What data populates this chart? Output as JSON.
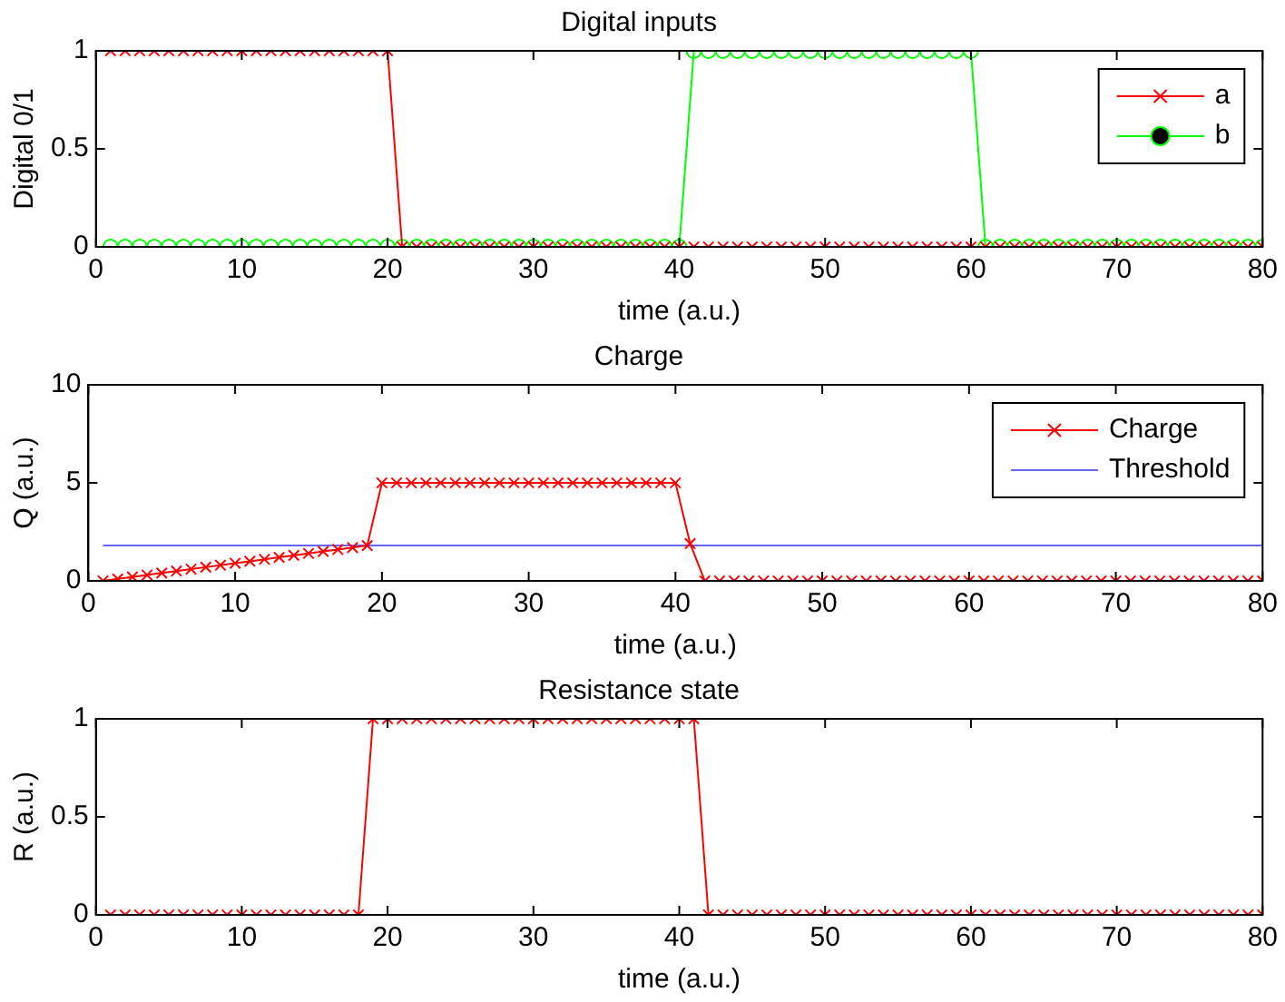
{
  "chart_data": [
    {
      "type": "line",
      "title": "Digital inputs",
      "xlabel": "time (a.u.)",
      "ylabel": "Digital 0/1",
      "marker": "cross",
      "legend": "top right",
      "xlim": [
        0,
        80
      ],
      "xticks": [
        0,
        10,
        20,
        30,
        40,
        50,
        60,
        70,
        80
      ],
      "ylim": [
        0,
        1
      ],
      "yticks": [
        0,
        0.5,
        1
      ],
      "x": [
        1,
        2,
        3,
        4,
        5,
        6,
        7,
        8,
        9,
        10,
        11,
        12,
        13,
        14,
        15,
        16,
        17,
        18,
        19,
        20,
        21,
        22,
        23,
        24,
        25,
        26,
        27,
        28,
        29,
        30,
        31,
        32,
        33,
        34,
        35,
        36,
        37,
        38,
        39,
        40,
        41,
        42,
        43,
        44,
        45,
        46,
        47,
        48,
        49,
        50,
        51,
        52,
        53,
        54,
        55,
        56,
        57,
        58,
        59,
        60,
        61,
        62,
        63,
        64,
        65,
        66,
        67,
        68,
        69,
        70,
        71,
        72,
        73,
        74,
        75,
        76,
        77,
        78,
        79,
        80
      ],
      "series": [
        {
          "name": "a",
          "color": "#ff0000",
          "values": [
            1,
            1,
            1,
            1,
            1,
            1,
            1,
            1,
            1,
            1,
            1,
            1,
            1,
            1,
            1,
            1,
            1,
            1,
            1,
            1,
            0,
            0,
            0,
            0,
            0,
            0,
            0,
            0,
            0,
            0,
            0,
            0,
            0,
            0,
            0,
            0,
            0,
            0,
            0,
            0,
            0,
            0,
            0,
            0,
            0,
            0,
            0,
            0,
            0,
            0,
            0,
            0,
            0,
            0,
            0,
            0,
            0,
            0,
            0,
            0,
            0,
            0,
            0,
            0,
            0,
            0,
            0,
            0,
            0,
            0,
            0,
            0,
            0,
            0,
            0,
            0,
            0,
            0,
            0,
            0
          ]
        },
        {
          "name": "b",
          "color": "#00ff00",
          "marker": "circle",
          "values": [
            0,
            0,
            0,
            0,
            0,
            0,
            0,
            0,
            0,
            0,
            0,
            0,
            0,
            0,
            0,
            0,
            0,
            0,
            0,
            0,
            0,
            0,
            0,
            0,
            0,
            0,
            0,
            0,
            0,
            0,
            0,
            0,
            0,
            0,
            0,
            0,
            0,
            0,
            0,
            0,
            1,
            1,
            1,
            1,
            1,
            1,
            1,
            1,
            1,
            1,
            1,
            1,
            1,
            1,
            1,
            1,
            1,
            1,
            1,
            1,
            0,
            0,
            0,
            0,
            0,
            0,
            0,
            0,
            0,
            0,
            0,
            0,
            0,
            0,
            0,
            0,
            0,
            0,
            0,
            0
          ]
        }
      ]
    },
    {
      "type": "line",
      "title": "Charge",
      "xlabel": "time (a.u.)",
      "ylabel": "Q (a.u.)",
      "marker": "cross",
      "legend": "top right",
      "xlim": [
        0,
        80
      ],
      "xticks": [
        0,
        10,
        20,
        30,
        40,
        50,
        60,
        70,
        80
      ],
      "ylim": [
        0,
        10
      ],
      "yticks": [
        0,
        5,
        10
      ],
      "x": [
        1,
        2,
        3,
        4,
        5,
        6,
        7,
        8,
        9,
        10,
        11,
        12,
        13,
        14,
        15,
        16,
        17,
        18,
        19,
        20,
        21,
        22,
        23,
        24,
        25,
        26,
        27,
        28,
        29,
        30,
        31,
        32,
        33,
        34,
        35,
        36,
        37,
        38,
        39,
        40,
        41,
        42,
        43,
        44,
        45,
        46,
        47,
        48,
        49,
        50,
        51,
        52,
        53,
        54,
        55,
        56,
        57,
        58,
        59,
        60,
        61,
        62,
        63,
        64,
        65,
        66,
        67,
        68,
        69,
        70,
        71,
        72,
        73,
        74,
        75,
        76,
        77,
        78,
        79,
        80
      ],
      "series": [
        {
          "name": "Charge",
          "color": "#ff0000",
          "values": [
            0,
            0.1,
            0.2,
            0.3,
            0.4,
            0.5,
            0.6,
            0.7,
            0.8,
            0.9,
            1,
            1.1,
            1.2,
            1.3,
            1.4,
            1.5,
            1.6,
            1.7,
            1.8,
            5,
            5,
            5,
            5,
            5,
            5,
            5,
            5,
            5,
            5,
            5,
            5,
            5,
            5,
            5,
            5,
            5,
            5,
            5,
            5,
            5,
            1.9,
            0,
            0,
            0,
            0,
            0,
            0,
            0,
            0,
            0,
            0,
            0,
            0,
            0,
            0,
            0,
            0,
            0,
            0,
            0,
            0,
            0,
            0,
            0,
            0,
            0,
            0,
            0,
            0,
            0,
            0,
            0,
            0,
            0,
            0,
            0,
            0,
            0,
            0,
            0
          ]
        },
        {
          "name": "Threshold",
          "color": "#6666ff",
          "marker": "none",
          "x": [
            1,
            80
          ],
          "values": [
            1.8,
            1.8
          ]
        }
      ]
    },
    {
      "type": "line",
      "title": "Resistance state",
      "xlabel": "time (a.u.)",
      "ylabel": "R (a.u.)",
      "marker": "cross",
      "xlim": [
        0,
        80
      ],
      "xticks": [
        0,
        10,
        20,
        30,
        40,
        50,
        60,
        70,
        80
      ],
      "ylim": [
        0,
        1
      ],
      "yticks": [
        0,
        0.5,
        1
      ],
      "x": [
        1,
        2,
        3,
        4,
        5,
        6,
        7,
        8,
        9,
        10,
        11,
        12,
        13,
        14,
        15,
        16,
        17,
        18,
        19,
        20,
        21,
        22,
        23,
        24,
        25,
        26,
        27,
        28,
        29,
        30,
        31,
        32,
        33,
        34,
        35,
        36,
        37,
        38,
        39,
        40,
        41,
        42,
        43,
        44,
        45,
        46,
        47,
        48,
        49,
        50,
        51,
        52,
        53,
        54,
        55,
        56,
        57,
        58,
        59,
        60,
        61,
        62,
        63,
        64,
        65,
        66,
        67,
        68,
        69,
        70,
        71,
        72,
        73,
        74,
        75,
        76,
        77,
        78,
        79,
        80
      ],
      "series": [
        {
          "color": "#ff0000",
          "values": [
            0,
            0,
            0,
            0,
            0,
            0,
            0,
            0,
            0,
            0,
            0,
            0,
            0,
            0,
            0,
            0,
            0,
            0,
            1,
            1,
            1,
            1,
            1,
            1,
            1,
            1,
            1,
            1,
            1,
            1,
            1,
            1,
            1,
            1,
            1,
            1,
            1,
            1,
            1,
            1,
            1,
            0,
            0,
            0,
            0,
            0,
            0,
            0,
            0,
            0,
            0,
            0,
            0,
            0,
            0,
            0,
            0,
            0,
            0,
            0,
            0,
            0,
            0,
            0,
            0,
            0,
            0,
            0,
            0,
            0,
            0,
            0,
            0,
            0,
            0,
            0,
            0,
            0,
            0,
            0
          ]
        }
      ]
    }
  ]
}
